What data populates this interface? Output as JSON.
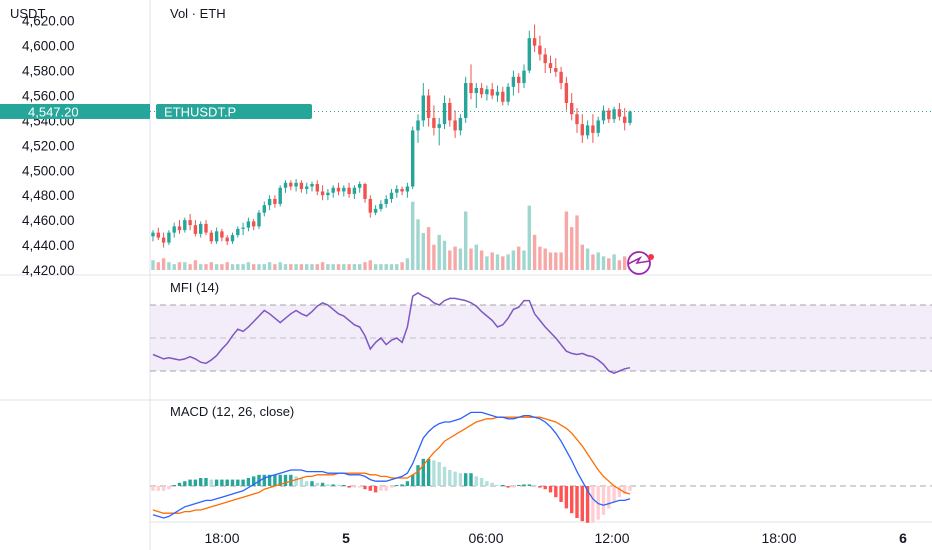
{
  "header": {
    "currency": "USDT",
    "volume_legend": "Vol · ETH"
  },
  "price_scale": {
    "ticks": [
      "4,620.00",
      "4,600.00",
      "4,580.00",
      "4,560.00",
      "4,540.00",
      "4,520.00",
      "4,500.00",
      "4,480.00",
      "4,460.00",
      "4,440.00",
      "4,420.00"
    ],
    "tick_values": [
      4620,
      4600,
      4580,
      4560,
      4540,
      4520,
      4500,
      4480,
      4460,
      4440,
      4420
    ],
    "range": [
      4420,
      4627
    ]
  },
  "last_price": {
    "value": "4,547.20",
    "symbol": "ETHUSDT.P",
    "level": 4547.2,
    "color": "#26a69a"
  },
  "indicators": {
    "mfi": {
      "label": "MFI (14)",
      "line_color": "#7e57c2",
      "band_color": "#ede7f6",
      "upper": 80,
      "lower": 20
    },
    "macd": {
      "label": "MACD (12, 26, close)",
      "macd_color": "#2962ff",
      "signal_color": "#ff6d00"
    }
  },
  "time_axis": {
    "labels": [
      "18:00",
      "5",
      "06:00",
      "12:00",
      "18:00",
      "6"
    ]
  },
  "colors": {
    "up": "#26a69a",
    "down": "#ef5350",
    "vol_up": "#9fd6cf",
    "vol_down": "#f7a8a6"
  },
  "chart_data": {
    "type": "candlestick",
    "symbol": "ETHUSDT.P",
    "quote": "USDT",
    "ylim": [
      4420,
      4627
    ],
    "x_ticks": [
      "18:00",
      "5",
      "06:00",
      "12:00",
      "18:00",
      "6"
    ],
    "ohlc": [
      [
        4447,
        4452,
        4443,
        4450
      ],
      [
        4450,
        4454,
        4444,
        4446
      ],
      [
        4446,
        4450,
        4438,
        4442
      ],
      [
        4442,
        4452,
        4440,
        4450
      ],
      [
        4450,
        4458,
        4446,
        4455
      ],
      [
        4455,
        4460,
        4449,
        4452
      ],
      [
        4452,
        4462,
        4450,
        4460
      ],
      [
        4460,
        4465,
        4452,
        4456
      ],
      [
        4456,
        4460,
        4447,
        4449
      ],
      [
        4449,
        4459,
        4446,
        4457
      ],
      [
        4457,
        4460,
        4448,
        4450
      ],
      [
        4450,
        4452,
        4441,
        4443
      ],
      [
        4443,
        4454,
        4441,
        4451
      ],
      [
        4451,
        4453,
        4443,
        4446
      ],
      [
        4446,
        4448,
        4440,
        4443
      ],
      [
        4443,
        4450,
        4441,
        4448
      ],
      [
        4448,
        4455,
        4446,
        4453
      ],
      [
        4453,
        4458,
        4448,
        4454
      ],
      [
        4454,
        4462,
        4451,
        4459
      ],
      [
        4459,
        4461,
        4452,
        4455
      ],
      [
        4455,
        4468,
        4453,
        4466
      ],
      [
        4466,
        4475,
        4463,
        4472
      ],
      [
        4472,
        4480,
        4468,
        4477
      ],
      [
        4477,
        4480,
        4470,
        4473
      ],
      [
        4473,
        4488,
        4471,
        4486
      ],
      [
        4486,
        4492,
        4482,
        4490
      ],
      [
        4490,
        4492,
        4484,
        4487
      ],
      [
        4487,
        4493,
        4483,
        4490
      ],
      [
        4490,
        4492,
        4482,
        4485
      ],
      [
        4485,
        4490,
        4481,
        4487
      ],
      [
        4487,
        4491,
        4483,
        4489
      ],
      [
        4489,
        4492,
        4480,
        4483
      ],
      [
        4483,
        4488,
        4476,
        4480
      ],
      [
        4480,
        4485,
        4476,
        4482
      ],
      [
        4482,
        4488,
        4478,
        4486
      ],
      [
        4486,
        4490,
        4480,
        4483
      ],
      [
        4483,
        4488,
        4479,
        4486
      ],
      [
        4486,
        4490,
        4478,
        4481
      ],
      [
        4481,
        4488,
        4477,
        4486
      ],
      [
        4486,
        4491,
        4482,
        4489
      ],
      [
        4489,
        4490,
        4474,
        4477
      ],
      [
        4477,
        4480,
        4462,
        4466
      ],
      [
        4466,
        4472,
        4464,
        4469
      ],
      [
        4469,
        4476,
        4467,
        4473
      ],
      [
        4473,
        4480,
        4470,
        4477
      ],
      [
        4477,
        4485,
        4474,
        4482
      ],
      [
        4482,
        4488,
        4478,
        4485
      ],
      [
        4485,
        4487,
        4480,
        4483
      ],
      [
        4483,
        4490,
        4478,
        4487
      ],
      [
        4487,
        4535,
        4485,
        4532
      ],
      [
        4532,
        4545,
        4522,
        4540
      ],
      [
        4540,
        4570,
        4535,
        4560
      ],
      [
        4560,
        4565,
        4535,
        4542
      ],
      [
        4542,
        4552,
        4528,
        4534
      ],
      [
        4534,
        4542,
        4520,
        4537
      ],
      [
        4537,
        4560,
        4533,
        4554
      ],
      [
        4554,
        4558,
        4535,
        4540
      ],
      [
        4540,
        4548,
        4526,
        4532
      ],
      [
        4532,
        4545,
        4528,
        4542
      ],
      [
        4542,
        4575,
        4538,
        4570
      ],
      [
        4570,
        4585,
        4557,
        4562
      ],
      [
        4562,
        4570,
        4550,
        4566
      ],
      [
        4566,
        4570,
        4558,
        4561
      ],
      [
        4561,
        4568,
        4556,
        4565
      ],
      [
        4565,
        4570,
        4557,
        4560
      ],
      [
        4560,
        4568,
        4555,
        4563
      ],
      [
        4563,
        4567,
        4552,
        4555
      ],
      [
        4555,
        4570,
        4552,
        4567
      ],
      [
        4567,
        4580,
        4560,
        4575
      ],
      [
        4575,
        4578,
        4562,
        4570
      ],
      [
        4570,
        4585,
        4566,
        4580
      ],
      [
        4580,
        4612,
        4578,
        4606
      ],
      [
        4606,
        4617,
        4595,
        4600
      ],
      [
        4600,
        4608,
        4588,
        4593
      ],
      [
        4593,
        4598,
        4578,
        4586
      ],
      [
        4586,
        4592,
        4578,
        4582
      ],
      [
        4582,
        4590,
        4575,
        4579
      ],
      [
        4579,
        4583,
        4565,
        4570
      ],
      [
        4570,
        4575,
        4548,
        4554
      ],
      [
        4554,
        4562,
        4540,
        4545
      ],
      [
        4545,
        4550,
        4530,
        4537
      ],
      [
        4537,
        4545,
        4522,
        4528
      ],
      [
        4528,
        4540,
        4525,
        4536
      ],
      [
        4536,
        4545,
        4522,
        4530
      ],
      [
        4530,
        4543,
        4527,
        4540
      ],
      [
        4540,
        4552,
        4537,
        4548
      ],
      [
        4548,
        4550,
        4538,
        4541
      ],
      [
        4541,
        4551,
        4538,
        4549
      ],
      [
        4549,
        4554,
        4540,
        4543
      ],
      [
        4543,
        4550,
        4532,
        4538
      ],
      [
        4538,
        4548,
        4536,
        4547.2
      ]
    ],
    "volume": [
      5,
      4,
      6,
      4,
      3,
      4,
      4,
      3,
      5,
      3,
      3,
      4,
      3,
      3,
      4,
      3,
      3,
      3,
      4,
      3,
      3,
      3,
      4,
      3,
      4,
      3,
      3,
      3,
      3,
      3,
      3,
      3,
      4,
      3,
      3,
      3,
      3,
      3,
      3,
      3,
      4,
      5,
      3,
      3,
      3,
      3,
      3,
      4,
      6,
      35,
      26,
      19,
      22,
      13,
      18,
      15,
      10,
      12,
      11,
      30,
      11,
      13,
      10,
      7,
      9,
      8,
      7,
      8,
      10,
      12,
      10,
      33,
      18,
      12,
      11,
      9,
      9,
      9,
      30,
      22,
      28,
      13,
      11,
      8,
      9,
      7,
      6,
      8,
      5,
      7,
      6
    ],
    "mfi": [
      35,
      33,
      31,
      32,
      31,
      30,
      31,
      33,
      31,
      28,
      27,
      30,
      34,
      40,
      45,
      52,
      58,
      56,
      60,
      65,
      70,
      75,
      72,
      68,
      64,
      68,
      72,
      75,
      72,
      70,
      74,
      79,
      82,
      80,
      76,
      72,
      70,
      66,
      62,
      60,
      52,
      40,
      46,
      50,
      44,
      48,
      50,
      46,
      60,
      88,
      91,
      88,
      86,
      82,
      80,
      84,
      86,
      86,
      85,
      84,
      82,
      79,
      74,
      70,
      66,
      60,
      62,
      68,
      76,
      78,
      84,
      84,
      72,
      66,
      60,
      55,
      50,
      44,
      38,
      36,
      35,
      36,
      34,
      33,
      30,
      26,
      20,
      18,
      20,
      22,
      23
    ],
    "macd": [
      -18,
      -19,
      -20,
      -19,
      -17,
      -15,
      -13,
      -12,
      -11,
      -10,
      -9,
      -9,
      -8,
      -7,
      -6,
      -5,
      -4,
      -3,
      -1,
      1,
      3,
      5,
      6,
      7,
      8,
      9,
      10,
      10,
      10,
      9,
      9,
      9,
      9,
      8,
      8,
      8,
      8,
      7,
      7,
      7,
      6,
      4,
      3,
      3,
      3,
      4,
      5,
      6,
      8,
      14,
      22,
      30,
      34,
      37,
      39,
      40,
      40,
      41,
      42,
      44,
      46,
      46,
      46,
      45,
      44,
      43,
      43,
      42,
      42,
      43,
      44,
      44,
      43,
      42,
      40,
      37,
      33,
      28,
      22,
      16,
      9,
      3,
      -3,
      -8,
      -11,
      -12,
      -11,
      -10,
      -9,
      -9,
      -8
    ],
    "signal": [
      -15,
      -16,
      -17,
      -17,
      -17,
      -17,
      -16,
      -16,
      -15,
      -15,
      -14,
      -13,
      -12,
      -11,
      -10,
      -9,
      -8,
      -7,
      -6,
      -5,
      -4,
      -2,
      -1,
      0,
      1,
      2,
      3,
      4,
      5,
      6,
      6,
      7,
      7,
      7,
      7,
      8,
      8,
      8,
      8,
      8,
      8,
      7,
      7,
      6,
      6,
      5,
      5,
      5,
      5,
      7,
      9,
      13,
      17,
      21,
      24,
      28,
      30,
      32,
      34,
      36,
      38,
      40,
      41,
      42,
      42,
      43,
      43,
      43,
      43,
      43,
      43,
      43,
      43,
      43,
      42,
      41,
      40,
      38,
      36,
      33,
      29,
      25,
      20,
      15,
      10,
      6,
      3,
      0,
      -2,
      -4,
      -5
    ],
    "histogram": [
      -3,
      -3,
      -3,
      -2,
      0,
      2,
      3,
      4,
      4,
      5,
      5,
      4,
      4,
      4,
      4,
      4,
      4,
      4,
      5,
      6,
      7,
      7,
      7,
      7,
      7,
      7,
      7,
      6,
      5,
      3,
      3,
      2,
      2,
      1,
      1,
      0,
      0,
      -1,
      -1,
      -1,
      -2,
      -3,
      -4,
      -3,
      -3,
      -1,
      0,
      1,
      3,
      7,
      13,
      17,
      17,
      16,
      15,
      12,
      10,
      9,
      8,
      8,
      8,
      6,
      5,
      3,
      2,
      0,
      0,
      -1,
      -1,
      0,
      1,
      1,
      0,
      -1,
      -2,
      -4,
      -7,
      -10,
      -14,
      -17,
      -20,
      -22,
      -23,
      -23,
      -21,
      -18,
      -14,
      -10,
      -7,
      -5,
      -3
    ]
  }
}
